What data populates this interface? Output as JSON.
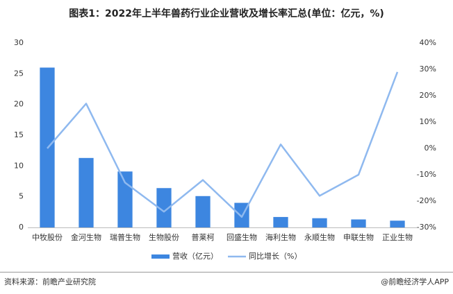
{
  "chart_data": {
    "type": "bar",
    "title": "图表1：2022年上半年兽药行业企业营收及增长率汇总(单位：亿元，%)",
    "categories": [
      "中牧股份",
      "金河生物",
      "瑞普生物",
      "生物股份",
      "普莱柯",
      "回盛生物",
      "海利生物",
      "永顺生物",
      "申联生物",
      "正业生物"
    ],
    "series": [
      {
        "name": "营收（亿元）",
        "type": "bar",
        "color": "#3d86e0",
        "values": [
          26.0,
          11.3,
          9.1,
          6.4,
          5.1,
          4.0,
          1.7,
          1.5,
          1.3,
          1.1
        ]
      },
      {
        "name": "同比增长（%）",
        "type": "line",
        "axis": "y2",
        "color": "#8fb9ef",
        "values": [
          0,
          17,
          -13,
          -24,
          -12,
          -26,
          1.5,
          -18,
          -10,
          29
        ]
      }
    ],
    "ylim": [
      0,
      30
    ],
    "yticks": [
      0,
      5,
      10,
      15,
      20,
      25,
      30
    ],
    "y2lim": [
      -30,
      40
    ],
    "y2ticks": [
      {
        "value": -30,
        "label": "-30%"
      },
      {
        "value": -20,
        "label": "-20%"
      },
      {
        "value": -10,
        "label": "-10%"
      },
      {
        "value": 0,
        "label": "0%"
      },
      {
        "value": 10,
        "label": "10%"
      },
      {
        "value": 20,
        "label": "20%"
      },
      {
        "value": 30,
        "label": "30%"
      },
      {
        "value": 40,
        "label": "40%"
      }
    ],
    "grid": false,
    "source": "资料来源：前瞻产业研究院",
    "brand": "@前瞻经济学人APP"
  }
}
